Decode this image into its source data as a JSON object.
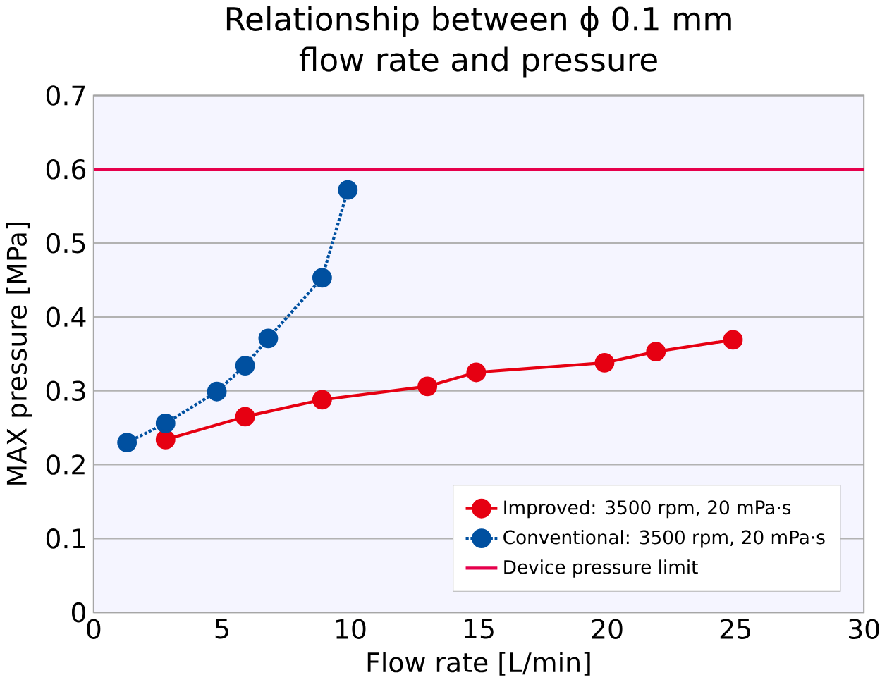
{
  "chart_data": {
    "type": "line",
    "title": "Relationship between ϕ 0.1 mm\nflow rate and pressure",
    "xlabel": "Flow rate [L/min]",
    "ylabel": "MAX pressure [MPa]",
    "series": [
      {
        "name": "Improved: 3500 rpm, 20 mPa·s",
        "color": "#e60012",
        "line_style": "solid",
        "x": [
          2.8,
          5.9,
          8.9,
          13,
          14.9,
          19.9,
          21.9,
          24.9
        ],
        "values": [
          0.234,
          0.265,
          0.288,
          0.306,
          0.325,
          0.338,
          0.353,
          0.369
        ]
      },
      {
        "name": "Conventional: 3500 rpm, 20 mPa·s",
        "color": "#0050a0",
        "line_style": "dotted",
        "x": [
          1.3,
          2.8,
          4.8,
          5.9,
          6.8,
          8.9,
          9.9
        ],
        "values": [
          0.23,
          0.256,
          0.299,
          0.334,
          0.371,
          0.453,
          0.572
        ]
      }
    ],
    "ref_lines": [
      {
        "axis": "y",
        "value": 0.6,
        "label": "Device pressure limit",
        "color": "#e6004c"
      }
    ],
    "marker": "circle",
    "grid": "y",
    "legend": "bottom right",
    "xlim": [
      0,
      30
    ],
    "ylim": [
      0,
      0.7
    ],
    "xticks": [
      0,
      5,
      10,
      15,
      20,
      25,
      30
    ],
    "yticks": [
      0,
      0.1,
      0.2,
      0.3,
      0.4,
      0.5,
      0.6,
      0.7
    ]
  }
}
